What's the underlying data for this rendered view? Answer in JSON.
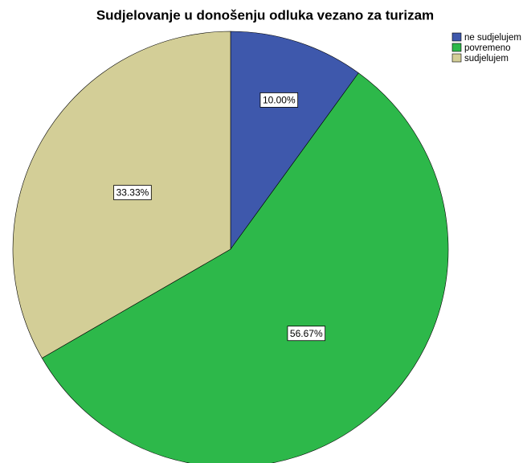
{
  "chart_data": {
    "type": "pie",
    "title": "Sudjelovanje u donošenju odluka vezano za turizam",
    "categories": [
      "ne sudjelujem",
      "povremeno",
      "sudjelujem"
    ],
    "values": [
      10,
      56.67,
      33.33
    ],
    "value_labels": [
      "10.00%",
      "56.67%",
      "33.33%"
    ],
    "colors": [
      "#3e58ac",
      "#2db84a",
      "#d3ce97"
    ],
    "legend": "top-right"
  }
}
